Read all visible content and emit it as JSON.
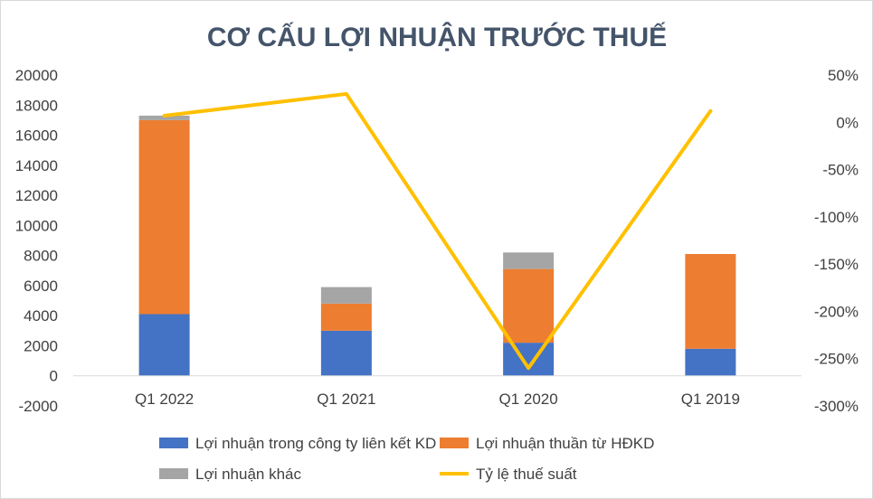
{
  "chart_data": {
    "type": "bar",
    "stacked": true,
    "title": "CƠ CẤU LỢI NHUẬN TRƯỚC THUẾ",
    "categories": [
      "Q1 2022",
      "Q1 2021",
      "Q1 2020",
      "Q1 2019"
    ],
    "series": [
      {
        "name": "Lợi nhuận trong công ty liên kết KD",
        "type": "bar",
        "axis": "left",
        "color": "#4472c4",
        "values": [
          4100,
          3000,
          2200,
          1800
        ]
      },
      {
        "name": "Lợi nhuận thuần từ HĐKD",
        "type": "bar",
        "axis": "left",
        "color": "#ed7d31",
        "values": [
          12900,
          1800,
          4900,
          6300
        ]
      },
      {
        "name": "Lợi nhuận khác",
        "type": "bar",
        "axis": "left",
        "color": "#a5a5a5",
        "values": [
          300,
          1100,
          1100,
          0
        ]
      },
      {
        "name": "Tỷ lệ thuế suất",
        "type": "line",
        "axis": "right",
        "color": "#ffc000",
        "values": [
          7,
          30,
          -260,
          12
        ]
      }
    ],
    "left_axis": {
      "ylim": [
        -2000,
        20000
      ],
      "ticks": [
        "-2000",
        "0",
        "2000",
        "4000",
        "6000",
        "8000",
        "10000",
        "12000",
        "14000",
        "16000",
        "18000",
        "20000"
      ]
    },
    "right_axis": {
      "ylim": [
        -300,
        50
      ],
      "unit": "%",
      "ticks": [
        "-300%",
        "-250%",
        "-200%",
        "-150%",
        "-100%",
        "-50%",
        "0%",
        "50%"
      ]
    },
    "legend_position": "bottom",
    "grid": false
  }
}
